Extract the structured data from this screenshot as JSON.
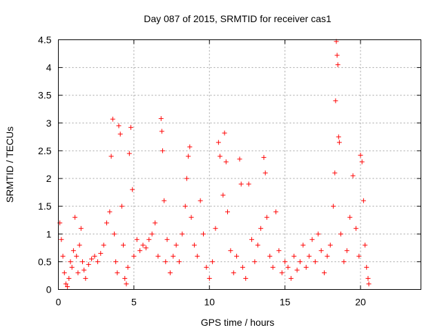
{
  "chart_data": {
    "type": "scatter",
    "title": "Day 087 of 2015, SRMTID for receiver cas1",
    "xlabel": "GPS time / hours",
    "ylabel": "SRMTID / TECUs",
    "xlim": [
      0,
      24
    ],
    "ylim": [
      0,
      4.5
    ],
    "xticks": [
      0,
      5,
      10,
      15,
      20
    ],
    "yticks": [
      0,
      0.5,
      1,
      1.5,
      2,
      2.5,
      3,
      3.5,
      4,
      4.5
    ],
    "xtick_labels": [
      "0",
      "5",
      "10",
      "15",
      "20"
    ],
    "ytick_labels": [
      "0",
      "0.5",
      "1",
      "1.5",
      "2",
      "2.5",
      "3",
      "3.5",
      "4",
      "4.5"
    ],
    "grid": true,
    "marker": "+",
    "series": [
      {
        "name": "SRMTID",
        "color": "#ff0000",
        "points": [
          [
            0.1,
            1.2
          ],
          [
            0.2,
            0.9
          ],
          [
            0.3,
            0.6
          ],
          [
            0.4,
            0.3
          ],
          [
            0.5,
            0.1
          ],
          [
            0.6,
            0.05
          ],
          [
            0.7,
            0.2
          ],
          [
            0.8,
            0.5
          ],
          [
            0.9,
            0.4
          ],
          [
            1.0,
            0.7
          ],
          [
            1.1,
            1.3
          ],
          [
            1.2,
            0.6
          ],
          [
            1.3,
            0.3
          ],
          [
            1.4,
            0.8
          ],
          [
            1.5,
            1.1
          ],
          [
            1.6,
            0.5
          ],
          [
            1.7,
            0.35
          ],
          [
            1.8,
            0.2
          ],
          [
            2.0,
            0.45
          ],
          [
            2.2,
            0.55
          ],
          [
            2.4,
            0.6
          ],
          [
            2.6,
            0.5
          ],
          [
            2.8,
            0.65
          ],
          [
            3.0,
            0.8
          ],
          [
            3.2,
            1.2
          ],
          [
            3.4,
            1.4
          ],
          [
            3.5,
            2.4
          ],
          [
            3.6,
            3.07
          ],
          [
            3.7,
            1.0
          ],
          [
            3.8,
            0.5
          ],
          [
            3.9,
            0.3
          ],
          [
            4.0,
            2.95
          ],
          [
            4.1,
            2.8
          ],
          [
            4.2,
            1.5
          ],
          [
            4.3,
            0.8
          ],
          [
            4.4,
            0.2
          ],
          [
            4.5,
            0.1
          ],
          [
            4.6,
            0.4
          ],
          [
            4.7,
            2.45
          ],
          [
            4.8,
            2.92
          ],
          [
            4.9,
            1.8
          ],
          [
            5.0,
            0.6
          ],
          [
            5.2,
            0.9
          ],
          [
            5.4,
            0.7
          ],
          [
            5.6,
            0.8
          ],
          [
            5.8,
            0.75
          ],
          [
            6.0,
            0.9
          ],
          [
            6.2,
            1.0
          ],
          [
            6.4,
            1.2
          ],
          [
            6.6,
            0.6
          ],
          [
            6.8,
            3.08
          ],
          [
            6.85,
            2.85
          ],
          [
            6.9,
            2.5
          ],
          [
            7.0,
            1.6
          ],
          [
            7.1,
            0.5
          ],
          [
            7.2,
            0.9
          ],
          [
            7.4,
            0.3
          ],
          [
            7.6,
            0.6
          ],
          [
            7.8,
            0.8
          ],
          [
            8.0,
            0.5
          ],
          [
            8.2,
            1.0
          ],
          [
            8.4,
            1.5
          ],
          [
            8.5,
            2.0
          ],
          [
            8.6,
            2.4
          ],
          [
            8.7,
            2.57
          ],
          [
            8.8,
            1.3
          ],
          [
            9.0,
            0.8
          ],
          [
            9.2,
            0.6
          ],
          [
            9.4,
            1.6
          ],
          [
            9.6,
            1.0
          ],
          [
            9.8,
            0.4
          ],
          [
            10.0,
            0.2
          ],
          [
            10.2,
            0.5
          ],
          [
            10.4,
            1.1
          ],
          [
            10.6,
            2.65
          ],
          [
            10.7,
            2.4
          ],
          [
            10.9,
            1.7
          ],
          [
            11.0,
            2.82
          ],
          [
            11.1,
            2.3
          ],
          [
            11.2,
            1.4
          ],
          [
            11.4,
            0.7
          ],
          [
            11.6,
            0.3
          ],
          [
            11.8,
            0.6
          ],
          [
            12.0,
            2.35
          ],
          [
            12.1,
            1.9
          ],
          [
            12.2,
            0.4
          ],
          [
            12.4,
            0.2
          ],
          [
            12.6,
            1.9
          ],
          [
            12.8,
            0.9
          ],
          [
            13.0,
            0.5
          ],
          [
            13.2,
            0.8
          ],
          [
            13.4,
            1.1
          ],
          [
            13.6,
            2.38
          ],
          [
            13.7,
            2.1
          ],
          [
            13.8,
            1.3
          ],
          [
            14.0,
            0.6
          ],
          [
            14.2,
            0.4
          ],
          [
            14.4,
            1.4
          ],
          [
            14.6,
            0.7
          ],
          [
            14.8,
            0.3
          ],
          [
            15.0,
            0.5
          ],
          [
            15.2,
            0.4
          ],
          [
            15.4,
            0.2
          ],
          [
            15.6,
            0.6
          ],
          [
            15.8,
            0.35
          ],
          [
            16.0,
            0.5
          ],
          [
            16.2,
            0.8
          ],
          [
            16.4,
            0.4
          ],
          [
            16.6,
            0.6
          ],
          [
            16.8,
            0.9
          ],
          [
            17.0,
            0.5
          ],
          [
            17.2,
            1.0
          ],
          [
            17.4,
            0.7
          ],
          [
            17.6,
            0.3
          ],
          [
            17.8,
            0.6
          ],
          [
            18.0,
            0.8
          ],
          [
            18.2,
            1.5
          ],
          [
            18.3,
            2.1
          ],
          [
            18.35,
            3.4
          ],
          [
            18.4,
            4.47
          ],
          [
            18.45,
            4.22
          ],
          [
            18.5,
            4.05
          ],
          [
            18.55,
            2.75
          ],
          [
            18.6,
            2.65
          ],
          [
            18.7,
            1.0
          ],
          [
            18.9,
            0.5
          ],
          [
            19.1,
            0.7
          ],
          [
            19.3,
            1.3
          ],
          [
            19.5,
            2.05
          ],
          [
            19.7,
            1.1
          ],
          [
            19.9,
            0.6
          ],
          [
            20.0,
            2.42
          ],
          [
            20.1,
            2.3
          ],
          [
            20.2,
            1.6
          ],
          [
            20.3,
            0.8
          ],
          [
            20.4,
            0.4
          ],
          [
            20.5,
            0.2
          ],
          [
            20.55,
            0.1
          ]
        ]
      }
    ]
  }
}
